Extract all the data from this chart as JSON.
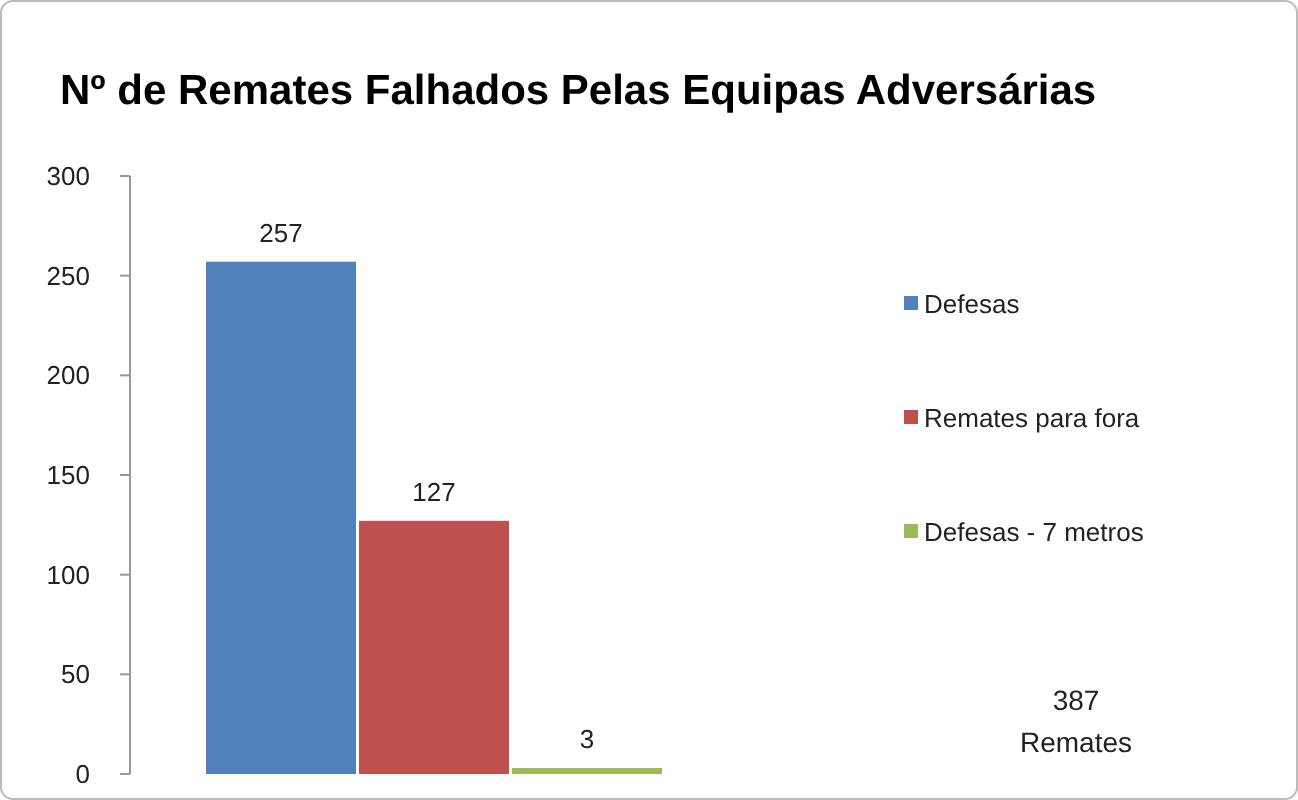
{
  "chart_data": {
    "type": "bar",
    "title": "Nº de Remates Falhados Pelas Equipas Adversárias",
    "categories": [
      null
    ],
    "series": [
      {
        "name": "Defesas",
        "color": "#4f81bd",
        "values": [
          257
        ]
      },
      {
        "name": "Remates para fora",
        "color": "#c0504d",
        "values": [
          127
        ]
      },
      {
        "name": "Defesas - 7 metros",
        "color": "#9bbb59",
        "values": [
          3
        ]
      }
    ],
    "ylim": [
      0,
      300
    ],
    "yticks": [
      0,
      50,
      100,
      150,
      200,
      250,
      300
    ],
    "grid": false,
    "legend": "right",
    "data_labels": true,
    "annotations": [
      "387",
      "Remates"
    ]
  }
}
